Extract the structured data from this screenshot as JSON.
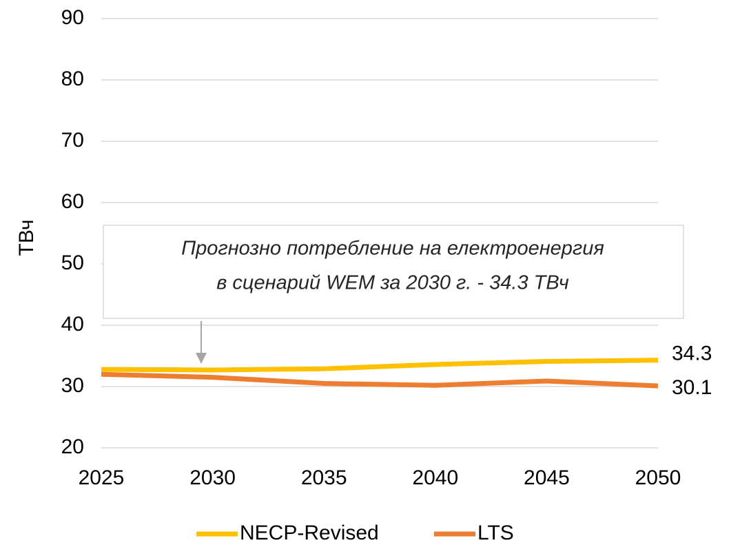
{
  "chart_data": {
    "type": "line",
    "y_label": "ТВч",
    "x": [
      2025,
      2030,
      2035,
      2040,
      2045,
      2050
    ],
    "xlim": [
      2025,
      2050
    ],
    "xticks": [
      2025,
      2030,
      2035,
      2040,
      2045,
      2050
    ],
    "ylim": [
      20,
      90
    ],
    "yticks": [
      20,
      30,
      40,
      50,
      60,
      70,
      80,
      90
    ],
    "grid": true,
    "series": [
      {
        "name": "NECP-Revised",
        "color": "#FFC000",
        "values": [
          32.8,
          32.7,
          32.9,
          33.6,
          34.1,
          34.3
        ]
      },
      {
        "name": "LTS",
        "color": "#ED7D31",
        "values": [
          32.0,
          31.5,
          30.5,
          30.2,
          30.9,
          30.1
        ]
      }
    ],
    "annotation": [
      "Прогнозно потребление на електроенергия",
      "в сценарий WEM за 2030 г. - 34.3 ТВч"
    ],
    "legend": "bottom"
  }
}
